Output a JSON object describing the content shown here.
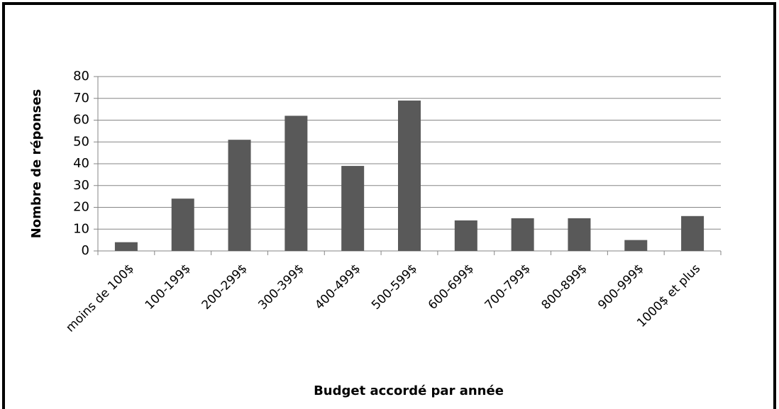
{
  "chart_data": {
    "type": "bar",
    "x_label": "Budget accordé par année",
    "y_label": "Nombre de réponses",
    "categories": [
      "moins de 100$",
      "100-199$",
      "200-299$",
      "300-399$",
      "400-499$",
      "500-599$",
      "600-699$",
      "700-799$",
      "800-899$",
      "900-999$",
      "1000$ et plus"
    ],
    "values": [
      4,
      24,
      51,
      62,
      39,
      69,
      14,
      15,
      15,
      5,
      16
    ],
    "color": "#595959",
    "ylim": [
      0,
      80
    ],
    "yticks": [
      0,
      10,
      20,
      30,
      40,
      50,
      60,
      70,
      80
    ],
    "grid": true
  }
}
